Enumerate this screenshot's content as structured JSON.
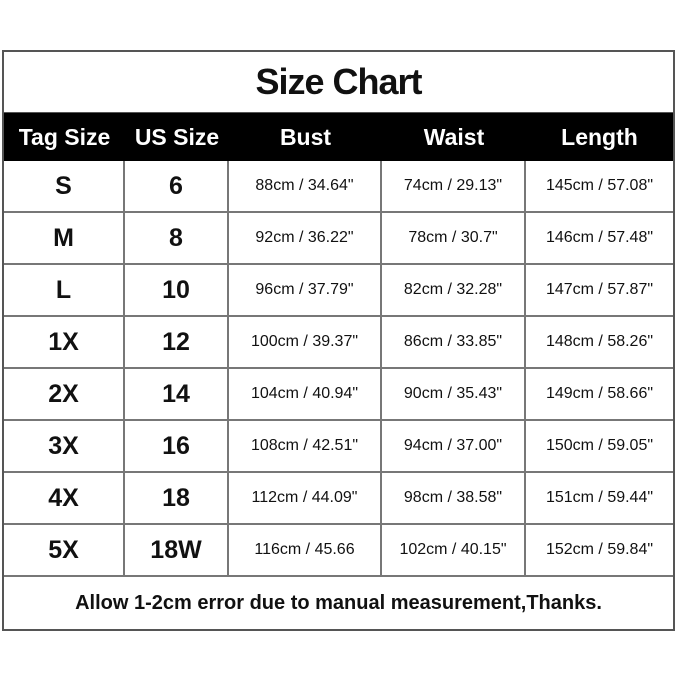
{
  "title": "Size Chart",
  "headers": [
    "Tag Size",
    "US Size",
    "Bust",
    "Waist",
    "Length"
  ],
  "rows": [
    [
      "S",
      "6",
      "88cm / 34.64\"",
      "74cm / 29.13\"",
      "145cm / 57.08\""
    ],
    [
      "M",
      "8",
      "92cm / 36.22\"",
      "78cm / 30.7\"",
      "146cm / 57.48\""
    ],
    [
      "L",
      "10",
      "96cm / 37.79\"",
      "82cm / 32.28\"",
      "147cm / 57.87\""
    ],
    [
      "1X",
      "12",
      "100cm / 39.37\"",
      "86cm / 33.85\"",
      "148cm / 58.26\""
    ],
    [
      "2X",
      "14",
      "104cm / 40.94\"",
      "90cm / 35.43\"",
      "149cm / 58.66\""
    ],
    [
      "3X",
      "16",
      "108cm / 42.51\"",
      "94cm / 37.00\"",
      "150cm / 59.05\""
    ],
    [
      "4X",
      "18",
      "112cm / 44.09\"",
      "98cm / 38.58\"",
      "151cm / 59.44\""
    ],
    [
      "5X",
      "18W",
      "116cm / 45.66",
      "102cm / 40.15\"",
      "152cm / 59.84\""
    ]
  ],
  "footer": "Allow 1-2cm error due to manual measurement,Thanks."
}
